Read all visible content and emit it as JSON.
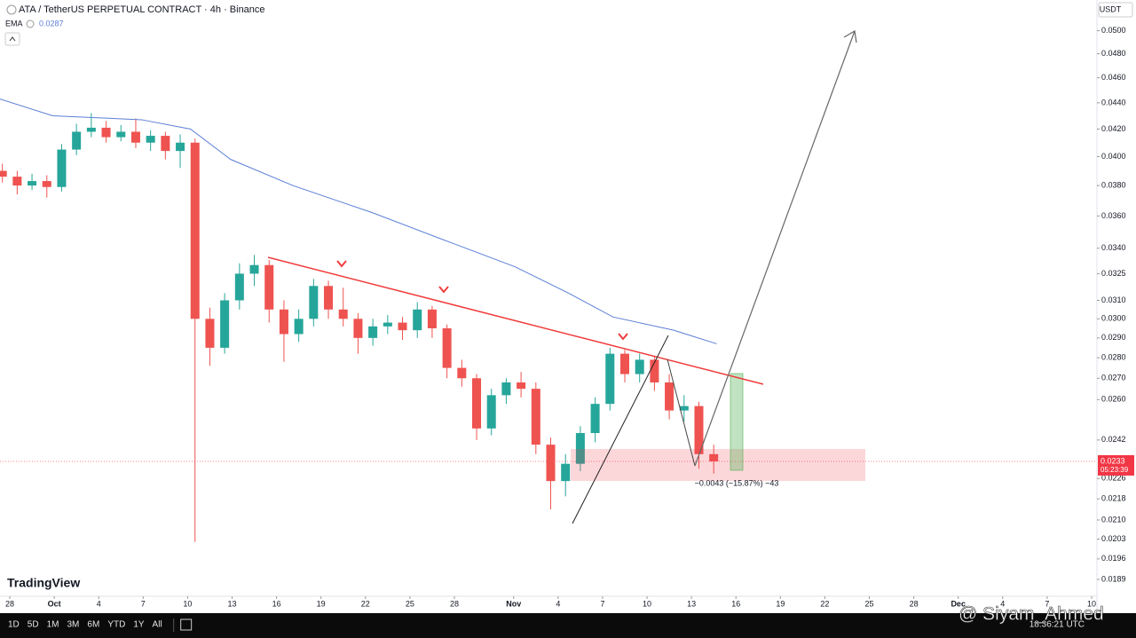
{
  "chart_data": {
    "type": "candlestick",
    "title": "ATA / TetherUS PERPETUAL CONTRACT · 4h · Binance",
    "currency": "USDT",
    "log_scale": true,
    "grid": false,
    "up_color": "#26a69a",
    "down_color": "#ef5350",
    "xlim": [
      -0.66,
      73.3
    ],
    "xticks": [
      {
        "value": 0,
        "label": "28"
      },
      {
        "value": 3,
        "label": "Oct"
      },
      {
        "value": 6,
        "label": "4"
      },
      {
        "value": 9,
        "label": "7"
      },
      {
        "value": 12,
        "label": "10"
      },
      {
        "value": 15,
        "label": "13"
      },
      {
        "value": 18,
        "label": "16"
      },
      {
        "value": 21,
        "label": "19"
      },
      {
        "value": 24,
        "label": "22"
      },
      {
        "value": 27,
        "label": "25"
      },
      {
        "value": 30,
        "label": "28"
      },
      {
        "value": 34,
        "label": "Nov"
      },
      {
        "value": 37,
        "label": "4"
      },
      {
        "value": 40,
        "label": "7"
      },
      {
        "value": 43,
        "label": "10"
      },
      {
        "value": 46,
        "label": "13"
      },
      {
        "value": 49,
        "label": "16"
      },
      {
        "value": 52,
        "label": "19"
      },
      {
        "value": 55,
        "label": "22"
      },
      {
        "value": 58,
        "label": "25"
      },
      {
        "value": 61,
        "label": "28"
      },
      {
        "value": 64,
        "label": "Dec"
      },
      {
        "value": 67,
        "label": "4"
      },
      {
        "value": 70,
        "label": "7"
      },
      {
        "value": 73,
        "label": "10"
      }
    ],
    "ylim": [
      0.0184,
      0.0528
    ],
    "yticks": [
      {
        "value": 0.05,
        "label": "0.0500"
      },
      {
        "value": 0.048,
        "label": "0.0480"
      },
      {
        "value": 0.046,
        "label": "0.0460"
      },
      {
        "value": 0.044,
        "label": "0.0440"
      },
      {
        "value": 0.042,
        "label": "0.0420"
      },
      {
        "value": 0.04,
        "label": "0.0400"
      },
      {
        "value": 0.038,
        "label": "0.0380"
      },
      {
        "value": 0.036,
        "label": "0.0360"
      },
      {
        "value": 0.034,
        "label": "0.0340"
      },
      0.0325,
      {
        "value": 0.031,
        "label": "0.0310"
      },
      {
        "value": 0.03,
        "label": "0.0300"
      },
      {
        "value": 0.029,
        "label": "0.0290"
      },
      {
        "value": 0.028,
        "label": "0.0280"
      },
      {
        "value": 0.027,
        "label": "0.0270"
      },
      {
        "value": 0.026,
        "label": "0.0260"
      },
      0.0242,
      0.0226,
      0.0218,
      {
        "value": 0.021,
        "label": "0.0210"
      },
      0.0203,
      0.0196,
      0.0189
    ],
    "x": [
      -0.5,
      0.5,
      1.5,
      2.5,
      3.5,
      4.5,
      5.5,
      6.5,
      7.5,
      8.5,
      9.5,
      10.5,
      11.5,
      12.5,
      13.5,
      14.5,
      15.5,
      16.5,
      17.5,
      18.5,
      19.5,
      20.5,
      21.5,
      22.5,
      23.5,
      24.5,
      25.5,
      26.5,
      27.5,
      28.5,
      29.5,
      30.5,
      31.5,
      32.5,
      33.5,
      34.5,
      35.5,
      36.5,
      37.5,
      38.5,
      39.5,
      40.5,
      41.5,
      42.5,
      43.5,
      44.5,
      45.5,
      46.5,
      47.5
    ],
    "open": [
      0.039,
      0.0386,
      0.038,
      0.0383,
      0.0379,
      0.0405,
      0.0418,
      0.0421,
      0.0414,
      0.0418,
      0.041,
      0.0415,
      0.0404,
      0.041,
      0.03,
      0.0285,
      0.031,
      0.0325,
      0.033,
      0.0305,
      0.0292,
      0.03,
      0.0318,
      0.0305,
      0.03,
      0.029,
      0.0296,
      0.0298,
      0.0294,
      0.0305,
      0.0295,
      0.0275,
      0.027,
      0.0247,
      0.0262,
      0.0268,
      0.0265,
      0.024,
      0.0225,
      0.0232,
      0.0245,
      0.0258,
      0.0282,
      0.0272,
      0.0279,
      0.0268,
      0.0255,
      0.0257,
      0.0236
    ],
    "high": [
      0.0395,
      0.039,
      0.0388,
      0.0387,
      0.0409,
      0.0424,
      0.0432,
      0.0426,
      0.0423,
      0.0428,
      0.0419,
      0.0418,
      0.0416,
      0.0413,
      0.0306,
      0.0314,
      0.0331,
      0.0336,
      0.0333,
      0.031,
      0.0305,
      0.0322,
      0.0321,
      0.0317,
      0.0303,
      0.03,
      0.0302,
      0.0301,
      0.0309,
      0.0307,
      0.0297,
      0.0279,
      0.0272,
      0.0265,
      0.027,
      0.0273,
      0.0268,
      0.0243,
      0.0236,
      0.0248,
      0.0261,
      0.0285,
      0.0284,
      0.0282,
      0.0281,
      0.0272,
      0.0262,
      0.0259,
      0.024
    ],
    "low": [
      0.0382,
      0.0374,
      0.0377,
      0.0372,
      0.0376,
      0.0401,
      0.0414,
      0.041,
      0.0411,
      0.0406,
      0.0404,
      0.0398,
      0.0392,
      0.0202,
      0.0276,
      0.0282,
      0.0305,
      0.0318,
      0.0298,
      0.0278,
      0.0288,
      0.0296,
      0.03,
      0.0296,
      0.0282,
      0.0286,
      0.0292,
      0.0289,
      0.029,
      0.029,
      0.027,
      0.0266,
      0.0242,
      0.0244,
      0.0258,
      0.0261,
      0.0236,
      0.0214,
      0.0219,
      0.0229,
      0.0241,
      0.0255,
      0.0268,
      0.0268,
      0.0264,
      0.0251,
      0.025,
      0.023,
      0.0228
    ],
    "close": [
      0.0386,
      0.038,
      0.0383,
      0.0379,
      0.0405,
      0.0418,
      0.0421,
      0.0414,
      0.0418,
      0.041,
      0.0415,
      0.0404,
      0.041,
      0.03,
      0.0285,
      0.031,
      0.0325,
      0.033,
      0.0305,
      0.0292,
      0.03,
      0.0318,
      0.0305,
      0.03,
      0.029,
      0.0296,
      0.0298,
      0.0294,
      0.0305,
      0.0295,
      0.0275,
      0.027,
      0.0247,
      0.0262,
      0.0268,
      0.0265,
      0.024,
      0.0225,
      0.0232,
      0.0245,
      0.0258,
      0.0282,
      0.0272,
      0.0279,
      0.0268,
      0.0255,
      0.0257,
      0.0236,
      0.0233
    ],
    "indicator": {
      "name": "EMA",
      "value": 0.0287,
      "color": "#5b7fd6",
      "x": [
        -0.66,
        2.9,
        8.9,
        12.2,
        14.9,
        19.1,
        24.5,
        29.3,
        34.1,
        37.7,
        40.7,
        44.8,
        47.7
      ],
      "values": [
        0.0443,
        0.043,
        0.0427,
        0.042,
        0.0398,
        0.038,
        0.0362,
        0.0345,
        0.0329,
        0.0314,
        0.0301,
        0.0294,
        0.0287
      ]
    },
    "last_price": 0.0233,
    "countdown": "05:23:39",
    "measurement": "−0.0043 (−15.87%) −43"
  },
  "toolbar": {
    "ranges": [
      "1D",
      "5D",
      "1M",
      "3M",
      "6M",
      "YTD",
      "1Y",
      "All"
    ],
    "time": "18:36:21 UTC"
  },
  "brand": "TradingView",
  "watermark": "@ Siyam_Ahmed"
}
